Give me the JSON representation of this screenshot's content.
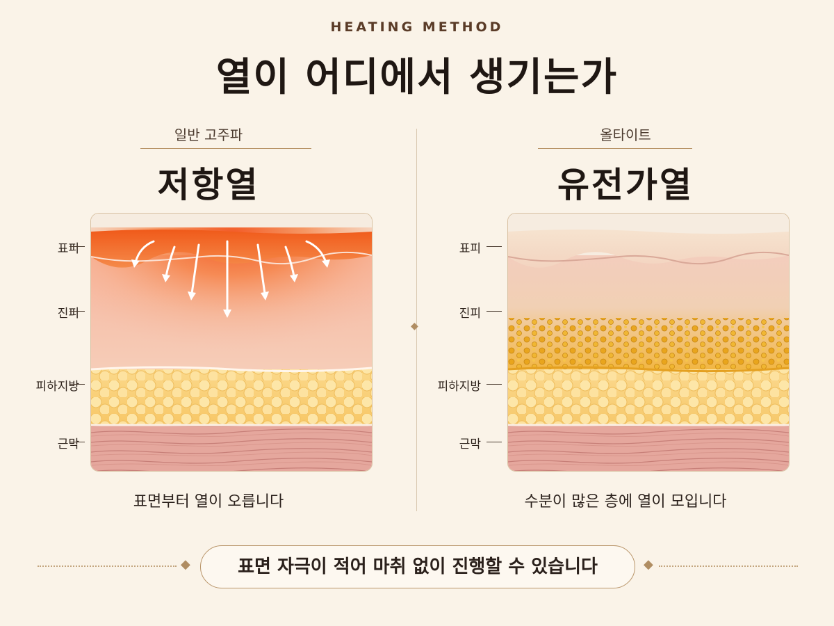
{
  "header": {
    "kicker": "HEATING METHOD",
    "title": "열이 어디에서 생기는가"
  },
  "layers": [
    "표피",
    "진피",
    "피하지방",
    "근막"
  ],
  "panels": {
    "left": {
      "subtitle": "일반 고주파",
      "method": "저항열",
      "caption": "표면부터 열이 오릅니다"
    },
    "right": {
      "subtitle": "올타이트",
      "method": "유전가열",
      "caption": "수분이 많은 층에 열이 모입니다"
    }
  },
  "footer": {
    "message": "표면 자극이 적어 마취 없이 진행할 수 있습니다"
  },
  "colors": {
    "background": "#faf3e8",
    "accent_gold": "#b89468",
    "surface_heat": "#f25c1a",
    "dielectric_heat": "#e2a21a"
  }
}
